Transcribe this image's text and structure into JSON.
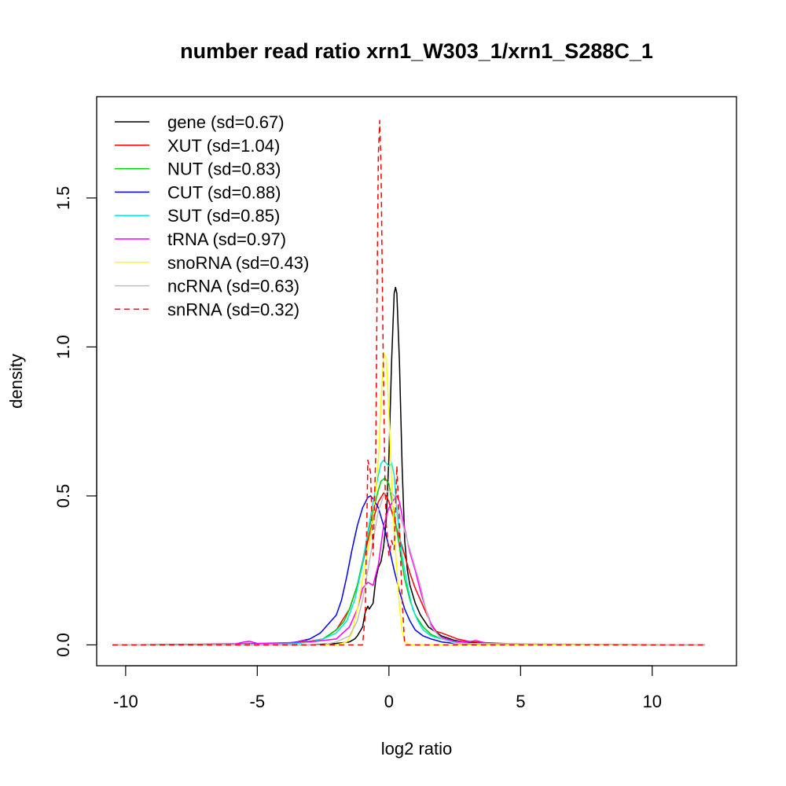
{
  "chart_data": {
    "type": "line",
    "title": "number read ratio xrn1_W303_1/xrn1_S288C_1",
    "xlabel": "log2 ratio",
    "ylabel": "density",
    "xlim": [
      -11.1,
      13.2
    ],
    "ylim": [
      -0.07,
      1.84
    ],
    "xticks": [
      -10,
      -5,
      0,
      5,
      10
    ],
    "yticks": [
      0.0,
      0.5,
      1.0,
      1.5
    ],
    "xtick_labels": [
      "-10",
      "-5",
      "0",
      "5",
      "10"
    ],
    "ytick_labels": [
      "0.0",
      "0.5",
      "1.0",
      "1.5"
    ],
    "grid": false,
    "legend_position": "top-left",
    "series": [
      {
        "name": "gene (sd=0.67)",
        "color": "#000000",
        "dash": "solid",
        "x": [
          -10.5,
          -3.0,
          -2.0,
          -1.5,
          -1.3,
          -1.2,
          -1.0,
          -0.9,
          -0.8,
          -0.75,
          -0.6,
          -0.5,
          -0.4,
          -0.3,
          -0.2,
          -0.1,
          0.0,
          0.1,
          0.2,
          0.25,
          0.3,
          0.4,
          0.5,
          0.6,
          0.7,
          0.8,
          1.0,
          1.2,
          1.5,
          2.0,
          2.5,
          3.0,
          4.0,
          6.0,
          12.0
        ],
        "y": [
          0,
          0,
          0.005,
          0.01,
          0.02,
          0.03,
          0.06,
          0.11,
          0.13,
          0.12,
          0.14,
          0.22,
          0.26,
          0.28,
          0.33,
          0.42,
          0.63,
          0.95,
          1.18,
          1.2,
          1.18,
          0.95,
          0.6,
          0.35,
          0.25,
          0.2,
          0.14,
          0.1,
          0.06,
          0.03,
          0.015,
          0.008,
          0.003,
          0.001,
          0
        ]
      },
      {
        "name": "XUT (sd=1.04)",
        "color": "#ff0000",
        "dash": "solid",
        "x": [
          -10.5,
          -6.0,
          -4.0,
          -3.0,
          -2.5,
          -2.0,
          -1.5,
          -1.2,
          -1.0,
          -0.8,
          -0.6,
          -0.4,
          -0.2,
          -0.1,
          0.0,
          0.2,
          0.4,
          0.6,
          0.8,
          1.0,
          1.2,
          1.4,
          1.6,
          1.8,
          2.0,
          2.3,
          2.6,
          3.0,
          3.5,
          4.5,
          6.0,
          12.0
        ],
        "y": [
          0,
          0.003,
          0.005,
          0.012,
          0.02,
          0.05,
          0.12,
          0.2,
          0.27,
          0.35,
          0.42,
          0.48,
          0.51,
          0.5,
          0.48,
          0.42,
          0.36,
          0.3,
          0.24,
          0.19,
          0.15,
          0.11,
          0.07,
          0.045,
          0.04,
          0.03,
          0.02,
          0.012,
          0.008,
          0.004,
          0.002,
          0
        ]
      },
      {
        "name": "NUT (sd=0.83)",
        "color": "#00cc00",
        "dash": "solid",
        "x": [
          -10.5,
          -5.0,
          -3.5,
          -3.0,
          -2.5,
          -2.0,
          -1.7,
          -1.5,
          -1.2,
          -1.0,
          -0.8,
          -0.6,
          -0.4,
          -0.3,
          -0.15,
          0.0,
          0.2,
          0.4,
          0.6,
          0.8,
          1.0,
          1.3,
          1.6,
          2.0,
          2.5,
          3.0,
          4.0,
          12.0
        ],
        "y": [
          0,
          0.002,
          0.005,
          0.01,
          0.02,
          0.05,
          0.08,
          0.12,
          0.2,
          0.28,
          0.37,
          0.45,
          0.52,
          0.55,
          0.56,
          0.54,
          0.44,
          0.33,
          0.22,
          0.15,
          0.1,
          0.06,
          0.035,
          0.02,
          0.01,
          0.005,
          0.002,
          0
        ]
      },
      {
        "name": "CUT (sd=0.88)",
        "color": "#0000ff",
        "dash": "solid",
        "x": [
          -10.5,
          -5.0,
          -4.0,
          -3.5,
          -3.0,
          -2.6,
          -2.3,
          -2.0,
          -1.8,
          -1.6,
          -1.4,
          -1.2,
          -1.0,
          -0.8,
          -0.7,
          -0.6,
          -0.4,
          -0.2,
          0.0,
          0.2,
          0.4,
          0.6,
          0.8,
          1.0,
          1.3,
          1.6,
          2.0,
          2.5,
          3.0,
          4.0,
          12.0
        ],
        "y": [
          0,
          0.003,
          0.005,
          0.01,
          0.02,
          0.04,
          0.07,
          0.1,
          0.15,
          0.23,
          0.32,
          0.4,
          0.46,
          0.495,
          0.5,
          0.49,
          0.46,
          0.4,
          0.33,
          0.25,
          0.18,
          0.12,
          0.08,
          0.05,
          0.03,
          0.02,
          0.01,
          0.005,
          0.003,
          0.001,
          0
        ]
      },
      {
        "name": "SUT (sd=0.85)",
        "color": "#00e5e5",
        "dash": "solid",
        "x": [
          -10.5,
          -5.0,
          -3.5,
          -3.0,
          -2.5,
          -2.0,
          -1.6,
          -1.3,
          -1.0,
          -0.8,
          -0.6,
          -0.4,
          -0.3,
          -0.2,
          0.0,
          0.1,
          0.2,
          0.3,
          0.5,
          0.7,
          0.9,
          1.1,
          1.3,
          1.6,
          2.0,
          2.5,
          3.0,
          4.0,
          12.0
        ],
        "y": [
          0,
          0.002,
          0.005,
          0.01,
          0.02,
          0.04,
          0.08,
          0.15,
          0.27,
          0.38,
          0.48,
          0.57,
          0.61,
          0.62,
          0.6,
          0.61,
          0.57,
          0.45,
          0.3,
          0.2,
          0.12,
          0.08,
          0.05,
          0.03,
          0.02,
          0.01,
          0.005,
          0.002,
          0
        ]
      },
      {
        "name": "tRNA (sd=0.97)",
        "color": "#ff00ff",
        "dash": "solid",
        "x": [
          -10.5,
          -6.0,
          -5.5,
          -5.3,
          -5.0,
          -3.5,
          -3.2,
          -3.0,
          -2.0,
          -1.5,
          -1.2,
          -1.0,
          -0.8,
          -0.6,
          -0.4,
          -0.2,
          0.0,
          0.2,
          0.3,
          0.4,
          0.6,
          0.8,
          1.0,
          1.2,
          1.4,
          1.6,
          1.8,
          2.0,
          2.5,
          3.0,
          3.3,
          3.6,
          4.0,
          12.0
        ],
        "y": [
          0,
          0,
          0.01,
          0.012,
          0.005,
          0.008,
          0.015,
          0.01,
          0.02,
          0.06,
          0.12,
          0.19,
          0.21,
          0.2,
          0.27,
          0.4,
          0.46,
          0.49,
          0.5,
          0.48,
          0.39,
          0.31,
          0.25,
          0.18,
          0.12,
          0.07,
          0.04,
          0.025,
          0.012,
          0.01,
          0.015,
          0.008,
          0.002,
          0
        ]
      },
      {
        "name": "snoRNA (sd=0.43)",
        "color": "#ffff00",
        "dash": "solid",
        "x": [
          -10.5,
          -2.0,
          -1.6,
          -1.4,
          -1.2,
          -1.0,
          -0.8,
          -0.6,
          -0.4,
          -0.3,
          -0.2,
          -0.1,
          0.0,
          0.1,
          0.2,
          0.3,
          0.4,
          0.5,
          0.6,
          0.8,
          12.0
        ],
        "y": [
          0,
          0,
          0.01,
          0.04,
          0.12,
          0.22,
          0.32,
          0.42,
          0.62,
          0.82,
          0.98,
          0.96,
          0.78,
          0.55,
          0.38,
          0.25,
          0.13,
          0.05,
          0.01,
          0,
          0
        ]
      },
      {
        "name": "ncRNA (sd=0.63)",
        "color": "#bebebe",
        "dash": "solid",
        "x": [
          -10.5,
          -2.5,
          -2.0,
          -1.5,
          -1.2,
          -1.0,
          -0.8,
          -0.6,
          -0.4,
          -0.2,
          0.0,
          0.2,
          0.4,
          0.6,
          0.8,
          1.0,
          1.2,
          1.4,
          1.6,
          2.0,
          2.5,
          12.0
        ],
        "y": [
          0,
          0,
          0.01,
          0.03,
          0.08,
          0.15,
          0.25,
          0.35,
          0.45,
          0.5,
          0.52,
          0.5,
          0.44,
          0.38,
          0.32,
          0.26,
          0.2,
          0.12,
          0.06,
          0.02,
          0.005,
          0
        ]
      },
      {
        "name": "snRNA (sd=0.32)",
        "color": "#ff0000",
        "dash": "dashed",
        "x": [
          -10.5,
          -1.0,
          -0.9,
          -0.8,
          -0.7,
          -0.6,
          -0.5,
          -0.45,
          -0.4,
          -0.35,
          -0.3,
          -0.25,
          -0.2,
          -0.15,
          -0.1,
          -0.05,
          0.0,
          0.1,
          0.2,
          0.3,
          0.4,
          0.5,
          0.6,
          12.0
        ],
        "y": [
          0,
          0,
          0.1,
          0.62,
          0.58,
          0.3,
          0.65,
          1.2,
          1.65,
          1.76,
          1.6,
          1.2,
          0.85,
          0.55,
          0.4,
          0.35,
          0.3,
          0.35,
          0.32,
          0.6,
          0.4,
          0.15,
          0,
          0
        ]
      }
    ]
  }
}
